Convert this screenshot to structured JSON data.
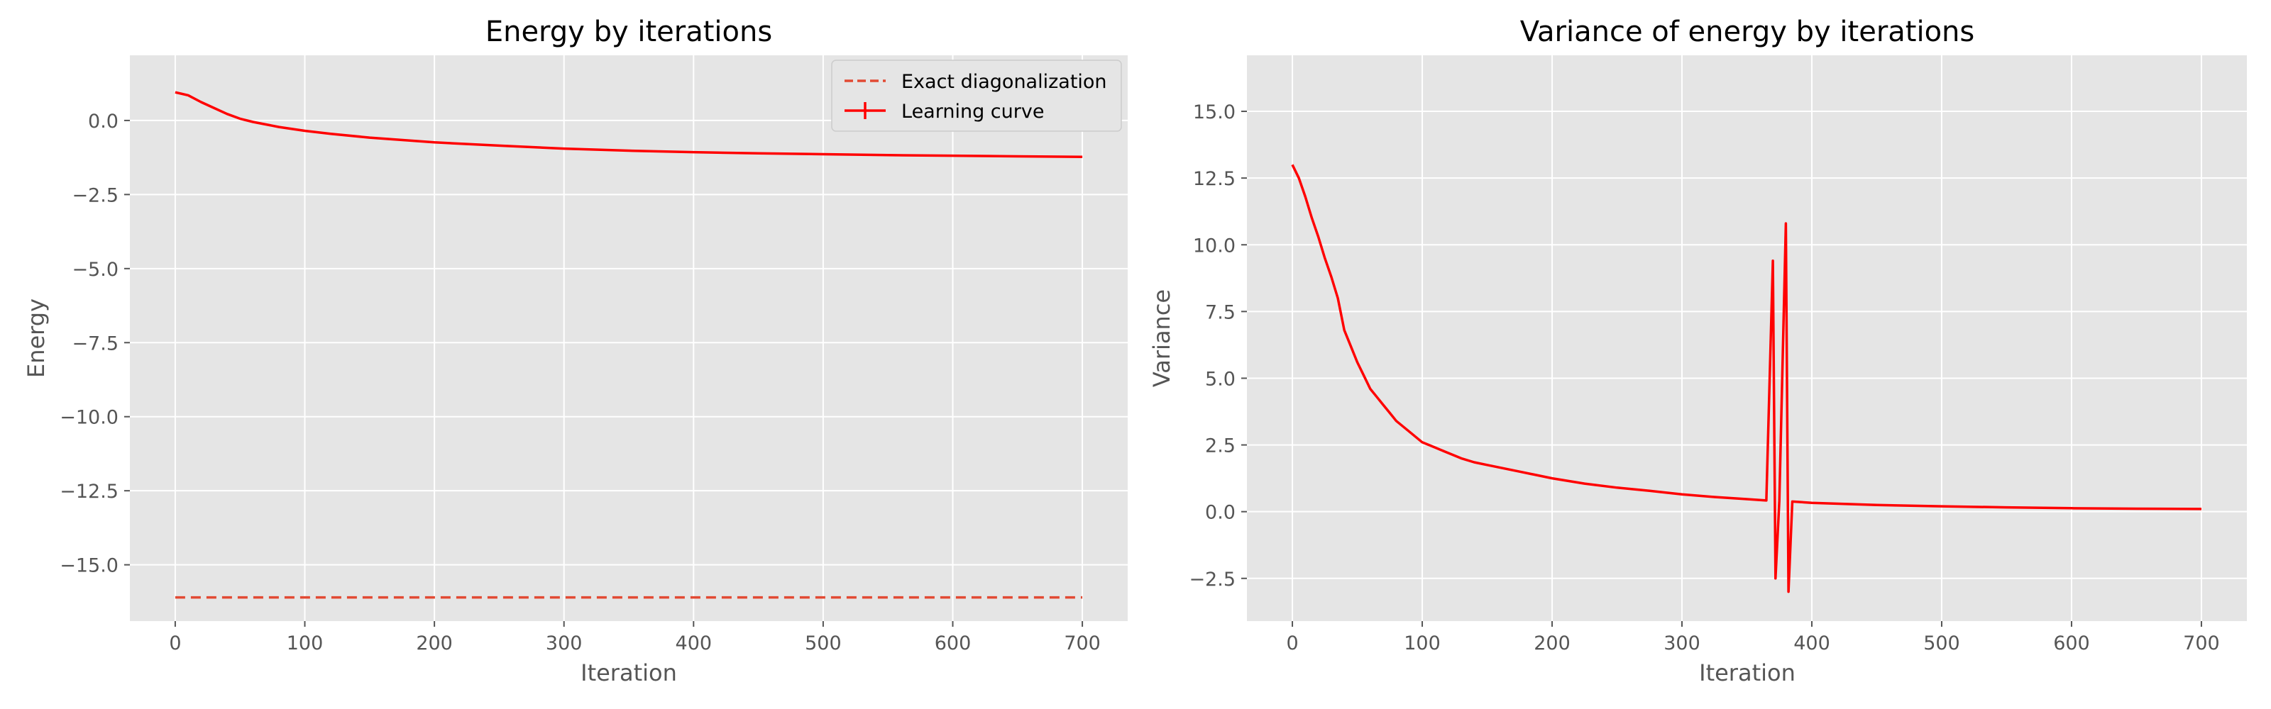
{
  "chart_data": [
    {
      "type": "line",
      "title": "Energy by iterations",
      "xlabel": "Iteration",
      "ylabel": "Energy",
      "xlim": [
        -35,
        735
      ],
      "ylim": [
        -16.9,
        2.2
      ],
      "xticks": [
        0,
        100,
        200,
        300,
        400,
        500,
        600,
        700
      ],
      "xtick_labels": [
        "0",
        "100",
        "200",
        "300",
        "400",
        "500",
        "600",
        "700"
      ],
      "yticks": [
        0.0,
        -2.5,
        -5.0,
        -7.5,
        -10.0,
        -12.5,
        -15.0
      ],
      "ytick_labels": [
        "0.0",
        "−2.5",
        "−5.0",
        "−7.5",
        "−10.0",
        "−12.5",
        "−15.0"
      ],
      "grid": true,
      "legend": "top-right",
      "series": [
        {
          "name": "Exact diagonalization",
          "style": "dashed",
          "color": "#e24a33",
          "x": [
            0,
            700
          ],
          "y": [
            -16.1,
            -16.1
          ]
        },
        {
          "name": "Learning curve",
          "style": "solid",
          "color": "#ff0000",
          "x": [
            0,
            10,
            20,
            30,
            40,
            50,
            60,
            80,
            100,
            120,
            150,
            200,
            250,
            300,
            350,
            400,
            450,
            500,
            550,
            600,
            650,
            700
          ],
          "y": [
            0.95,
            0.85,
            0.62,
            0.42,
            0.22,
            0.06,
            -0.05,
            -0.22,
            -0.35,
            -0.45,
            -0.58,
            -0.74,
            -0.85,
            -0.95,
            -1.02,
            -1.07,
            -1.11,
            -1.14,
            -1.17,
            -1.19,
            -1.21,
            -1.23
          ]
        }
      ]
    },
    {
      "type": "line",
      "title": "Variance of energy by iterations",
      "xlabel": "Iteration",
      "ylabel": "Variance",
      "xlim": [
        -35,
        735
      ],
      "ylim": [
        -4.1,
        17.1
      ],
      "xticks": [
        0,
        100,
        200,
        300,
        400,
        500,
        600,
        700
      ],
      "xtick_labels": [
        "0",
        "100",
        "200",
        "300",
        "400",
        "500",
        "600",
        "700"
      ],
      "yticks": [
        -2.5,
        0.0,
        2.5,
        5.0,
        7.5,
        10.0,
        12.5,
        15.0
      ],
      "ytick_labels": [
        "−2.5",
        "0.0",
        "2.5",
        "5.0",
        "7.5",
        "10.0",
        "12.5",
        "15.0"
      ],
      "grid": true,
      "series": [
        {
          "style": "solid",
          "color": "#ff0000",
          "x": [
            0,
            5,
            10,
            15,
            20,
            25,
            30,
            35,
            40,
            45,
            50,
            55,
            60,
            65,
            70,
            75,
            80,
            90,
            100,
            110,
            120,
            130,
            140,
            150,
            175,
            200,
            225,
            250,
            275,
            300,
            325,
            350,
            365,
            370,
            372,
            375,
            380,
            382,
            385,
            400,
            450,
            500,
            550,
            600,
            650,
            700
          ],
          "y": [
            13.0,
            12.5,
            11.8,
            11.0,
            10.3,
            9.5,
            8.8,
            8.0,
            6.8,
            6.2,
            5.6,
            5.1,
            4.6,
            4.3,
            4.0,
            3.7,
            3.4,
            3.0,
            2.6,
            2.4,
            2.2,
            2.0,
            1.85,
            1.75,
            1.5,
            1.25,
            1.05,
            0.9,
            0.78,
            0.65,
            0.55,
            0.47,
            0.42,
            9.4,
            -2.5,
            0.4,
            10.8,
            -3.0,
            0.38,
            0.33,
            0.25,
            0.2,
            0.16,
            0.13,
            0.11,
            0.1
          ]
        }
      ]
    }
  ]
}
